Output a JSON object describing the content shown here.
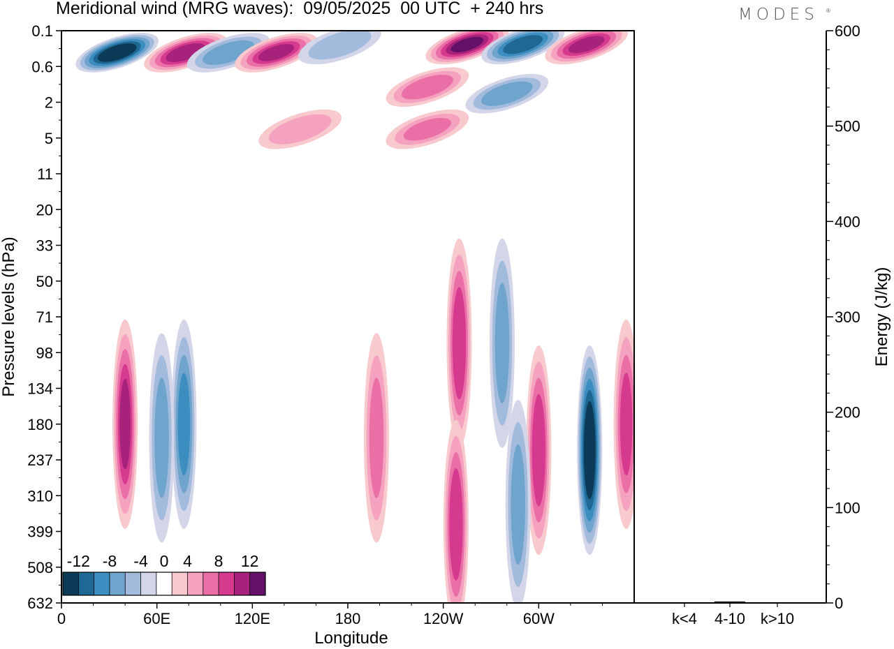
{
  "title": "Meridional wind (MRG waves):  09/05/2025  00 UTC  + 240 hrs",
  "logo": "MODES",
  "logo_mark": "®",
  "chart_data": [
    {
      "type": "heatmap",
      "title": "Meridional wind (MRG waves):  09/05/2025  00 UTC  + 240 hrs",
      "xlabel": "Longitude",
      "ylabel": "Pressure levels (hPa)",
      "x_ticks": [
        "0",
        "60E",
        "120E",
        "180",
        "120W",
        "60W"
      ],
      "x_tick_degrees": [
        0,
        60,
        120,
        180,
        240,
        300
      ],
      "xlim": [
        0,
        360
      ],
      "y_ticks": [
        "0.1",
        "0.6",
        "2",
        "5",
        "11",
        "20",
        "33",
        "50",
        "71",
        "98",
        "134",
        "180",
        "237",
        "310",
        "399",
        "508",
        "632"
      ],
      "y_scale": "model levels (top = 0.1 hPa, bottom = 632 hPa)",
      "colorbar": {
        "labels": [
          "-12",
          "-8",
          "-4",
          "0",
          "4",
          "8",
          "12"
        ],
        "levels": [
          -14,
          -12,
          -10,
          -8,
          -6,
          -4,
          -2,
          2,
          4,
          6,
          8,
          10,
          12,
          14
        ],
        "colors": [
          "#0b3b57",
          "#1f6894",
          "#3d8ec0",
          "#6fa4cc",
          "#a2badb",
          "#d2d6e8",
          "#ffffff",
          "#f8c9cd",
          "#f4a2bf",
          "#ea6fa6",
          "#d63a8f",
          "#a7227a",
          "#651068"
        ],
        "placement": "bottom-left inside plot"
      },
      "features": [
        {
          "lon": 35,
          "level": "0.3",
          "value": -14
        },
        {
          "lon": 78,
          "level": "0.3",
          "value": 11
        },
        {
          "lon": 105,
          "level": "0.3",
          "value": -7
        },
        {
          "lon": 135,
          "level": "0.3",
          "value": 10
        },
        {
          "lon": 175,
          "level": "0.2",
          "value": -5
        },
        {
          "lon": 230,
          "level": "1.2",
          "value": 7
        },
        {
          "lon": 255,
          "level": "0.2",
          "value": 12
        },
        {
          "lon": 290,
          "level": "0.2",
          "value": -11
        },
        {
          "lon": 330,
          "level": "0.2",
          "value": 10
        },
        {
          "lon": 280,
          "level": "1.5",
          "value": -7
        },
        {
          "lon": 230,
          "level": "4",
          "value": 6
        },
        {
          "lon": 150,
          "level": "4",
          "value": 5
        },
        {
          "lon": 40,
          "level": "180",
          "value": 10
        },
        {
          "lon": 77,
          "level": "180",
          "value": -8
        },
        {
          "lon": 63,
          "level": "200",
          "value": -6
        },
        {
          "lon": 250,
          "level": "90",
          "value": 9
        },
        {
          "lon": 277,
          "level": "90",
          "value": -6
        },
        {
          "lon": 198,
          "level": "200",
          "value": 6
        },
        {
          "lon": 248,
          "level": "380",
          "value": 9
        },
        {
          "lon": 300,
          "level": "220",
          "value": 9
        },
        {
          "lon": 332,
          "level": "220",
          "value": -14
        },
        {
          "lon": 287,
          "level": "330",
          "value": -6
        },
        {
          "lon": 355,
          "level": "180",
          "value": 8
        }
      ]
    },
    {
      "type": "bar",
      "categories": [
        "k<4",
        "4-10",
        "k>10"
      ],
      "values": [
        0.5,
        1.5,
        0.3
      ],
      "ylabel": "Energy (J/kg)",
      "ylim": [
        0,
        600
      ],
      "y_ticks": [
        0,
        100,
        200,
        300,
        400,
        500,
        600
      ],
      "y_axis_side": "right"
    }
  ]
}
